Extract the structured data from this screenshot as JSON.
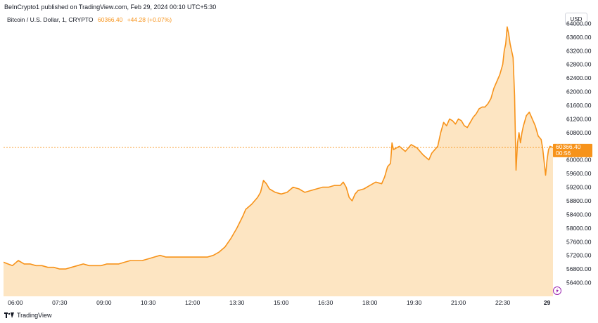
{
  "header": {
    "published_line": "BeInCrypto1 published on TradingView.com, Feb 29, 2024 00:10 UTC+5:30"
  },
  "legend": {
    "symbol": "Bitcoin / U.S. Dollar, 1, CRYPTO",
    "price": "60366.40",
    "change": "+44.28 (+0.07%)"
  },
  "currency_button": "USD",
  "price_tag": {
    "price": "60366.40",
    "countdown": "00:56"
  },
  "footer": {
    "brand": "TradingView"
  },
  "colors": {
    "line": "#f7931a",
    "area_fill": "#fde5c2",
    "price_tag_bg": "#f7931a",
    "lightning_icon": "#9c27b0"
  },
  "chart_data": {
    "type": "area",
    "title": "",
    "xlabel": "",
    "ylabel": "",
    "ylim": [
      56000,
      64400
    ],
    "y_ticks": [
      56400,
      56800,
      57200,
      57600,
      58000,
      58400,
      58800,
      59200,
      59600,
      60000,
      60400,
      60800,
      61200,
      61600,
      62000,
      62400,
      62800,
      63200,
      63600,
      64000
    ],
    "y_tick_labels": [
      "56400.00",
      "56800.00",
      "57200.00",
      "57600.00",
      "58000.00",
      "58400.00",
      "58800.00",
      "59200.00",
      "59600.00",
      "60000.00",
      "60400.00",
      "60800.00",
      "61200.00",
      "61600.00",
      "62000.00",
      "62400.00",
      "62800.00",
      "63200.00",
      "63600.00",
      "64000.00"
    ],
    "x_tick_labels": [
      "06:00",
      "07:30",
      "09:00",
      "10:30",
      "12:00",
      "13:30",
      "15:00",
      "16:30",
      "18:00",
      "19:30",
      "21:00",
      "22:30",
      "29"
    ],
    "x_tick_hours": [
      6,
      7.5,
      9,
      10.5,
      12,
      13.5,
      15,
      16.5,
      18,
      19.5,
      21,
      22.5,
      24
    ],
    "xlim_hours": [
      5.6,
      24.2
    ],
    "last_price": 60366.4,
    "grid": false,
    "series": [
      {
        "points": [
          [
            5.6,
            57000
          ],
          [
            5.75,
            56950
          ],
          [
            5.9,
            56900
          ],
          [
            6.1,
            57050
          ],
          [
            6.3,
            56950
          ],
          [
            6.5,
            56950
          ],
          [
            6.7,
            56900
          ],
          [
            6.9,
            56900
          ],
          [
            7.1,
            56850
          ],
          [
            7.3,
            56850
          ],
          [
            7.5,
            56800
          ],
          [
            7.7,
            56800
          ],
          [
            7.9,
            56850
          ],
          [
            8.1,
            56900
          ],
          [
            8.3,
            56950
          ],
          [
            8.5,
            56900
          ],
          [
            8.7,
            56900
          ],
          [
            8.9,
            56900
          ],
          [
            9.1,
            56950
          ],
          [
            9.3,
            56950
          ],
          [
            9.5,
            56950
          ],
          [
            9.7,
            57000
          ],
          [
            9.9,
            57050
          ],
          [
            10.1,
            57050
          ],
          [
            10.3,
            57050
          ],
          [
            10.5,
            57100
          ],
          [
            10.7,
            57150
          ],
          [
            10.9,
            57200
          ],
          [
            11.1,
            57150
          ],
          [
            11.3,
            57150
          ],
          [
            11.5,
            57150
          ],
          [
            11.7,
            57150
          ],
          [
            11.9,
            57150
          ],
          [
            12.1,
            57150
          ],
          [
            12.3,
            57150
          ],
          [
            12.5,
            57150
          ],
          [
            12.7,
            57200
          ],
          [
            12.9,
            57300
          ],
          [
            13.1,
            57450
          ],
          [
            13.3,
            57700
          ],
          [
            13.5,
            58000
          ],
          [
            13.7,
            58350
          ],
          [
            13.8,
            58550
          ],
          [
            14.0,
            58700
          ],
          [
            14.2,
            58900
          ],
          [
            14.3,
            59050
          ],
          [
            14.4,
            59400
          ],
          [
            14.5,
            59300
          ],
          [
            14.6,
            59150
          ],
          [
            14.8,
            59050
          ],
          [
            15.0,
            59000
          ],
          [
            15.2,
            59050
          ],
          [
            15.4,
            59200
          ],
          [
            15.6,
            59150
          ],
          [
            15.8,
            59050
          ],
          [
            16.0,
            59100
          ],
          [
            16.2,
            59150
          ],
          [
            16.4,
            59200
          ],
          [
            16.6,
            59200
          ],
          [
            16.8,
            59250
          ],
          [
            17.0,
            59250
          ],
          [
            17.1,
            59350
          ],
          [
            17.2,
            59200
          ],
          [
            17.3,
            58900
          ],
          [
            17.4,
            58800
          ],
          [
            17.5,
            59000
          ],
          [
            17.6,
            59100
          ],
          [
            17.8,
            59150
          ],
          [
            18.0,
            59250
          ],
          [
            18.2,
            59350
          ],
          [
            18.4,
            59300
          ],
          [
            18.5,
            59500
          ],
          [
            18.6,
            59800
          ],
          [
            18.7,
            59900
          ],
          [
            18.75,
            60500
          ],
          [
            18.8,
            60300
          ],
          [
            19.0,
            60400
          ],
          [
            19.2,
            60250
          ],
          [
            19.4,
            60450
          ],
          [
            19.6,
            60350
          ],
          [
            19.8,
            60150
          ],
          [
            20.0,
            60000
          ],
          [
            20.1,
            60200
          ],
          [
            20.3,
            60400
          ],
          [
            20.4,
            60800
          ],
          [
            20.5,
            61100
          ],
          [
            20.6,
            61000
          ],
          [
            20.7,
            61200
          ],
          [
            20.8,
            61150
          ],
          [
            20.9,
            61050
          ],
          [
            21.0,
            61200
          ],
          [
            21.1,
            61150
          ],
          [
            21.2,
            61000
          ],
          [
            21.3,
            60950
          ],
          [
            21.4,
            61100
          ],
          [
            21.5,
            61250
          ],
          [
            21.6,
            61350
          ],
          [
            21.7,
            61500
          ],
          [
            21.8,
            61550
          ],
          [
            21.9,
            61550
          ],
          [
            22.0,
            61650
          ],
          [
            22.1,
            61800
          ],
          [
            22.2,
            62100
          ],
          [
            22.3,
            62300
          ],
          [
            22.4,
            62500
          ],
          [
            22.5,
            62800
          ],
          [
            22.55,
            63200
          ],
          [
            22.6,
            63400
          ],
          [
            22.65,
            63900
          ],
          [
            22.7,
            63700
          ],
          [
            22.75,
            63400
          ],
          [
            22.8,
            63200
          ],
          [
            22.85,
            63000
          ],
          [
            22.9,
            61900
          ],
          [
            22.95,
            59700
          ],
          [
            23.0,
            60500
          ],
          [
            23.05,
            60800
          ],
          [
            23.1,
            60500
          ],
          [
            23.15,
            60800
          ],
          [
            23.2,
            61000
          ],
          [
            23.3,
            61300
          ],
          [
            23.4,
            61400
          ],
          [
            23.5,
            61200
          ],
          [
            23.6,
            61000
          ],
          [
            23.7,
            60700
          ],
          [
            23.8,
            60600
          ],
          [
            23.85,
            60350
          ],
          [
            23.9,
            59950
          ],
          [
            23.95,
            59550
          ],
          [
            24.0,
            60000
          ],
          [
            24.05,
            60300
          ],
          [
            24.1,
            60400
          ],
          [
            24.15,
            60380
          ],
          [
            24.2,
            60366.4
          ]
        ]
      }
    ]
  }
}
